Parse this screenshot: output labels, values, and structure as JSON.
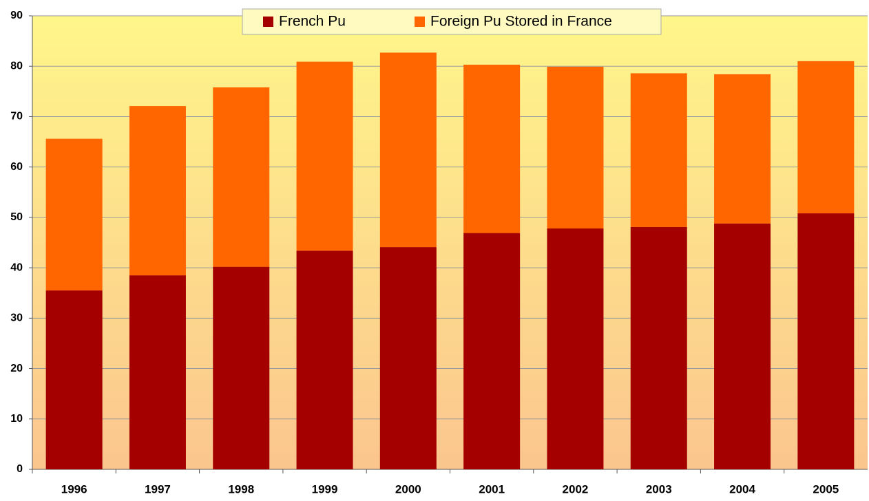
{
  "chart_data": {
    "type": "stacked-bar",
    "categories": [
      "1996",
      "1997",
      "1998",
      "1999",
      "2000",
      "2001",
      "2002",
      "2003",
      "2004",
      "2005"
    ],
    "series": [
      {
        "name": "French Pu",
        "color": "#a50000",
        "values": [
          35.5,
          38.5,
          40.2,
          43.4,
          44.1,
          46.9,
          47.8,
          48.1,
          48.8,
          50.8
        ]
      },
      {
        "name": "Foreign Pu Stored in France",
        "color": "#ff6600",
        "values": [
          30.1,
          33.6,
          35.6,
          37.5,
          38.6,
          33.4,
          32.1,
          30.5,
          29.6,
          30.2
        ]
      }
    ],
    "ylim": [
      0,
      90
    ],
    "yticks": [
      0,
      10,
      20,
      30,
      40,
      50,
      60,
      70,
      80,
      90
    ],
    "grid": true,
    "legend": "top"
  }
}
